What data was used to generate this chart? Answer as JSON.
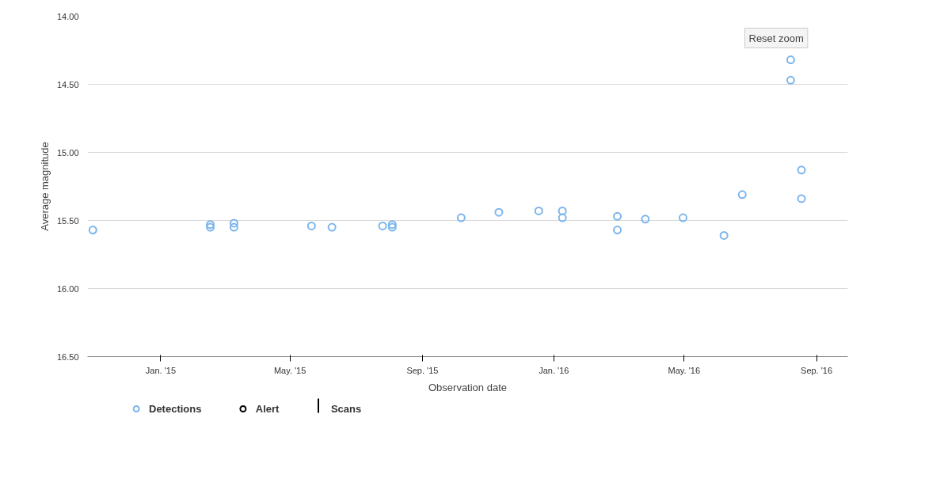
{
  "chart_data": {
    "type": "scatter",
    "xlabel": "Observation date",
    "ylabel": "Average magnitude",
    "xlim": [
      "2014-10-25",
      "2016-09-30"
    ],
    "ylim": [
      16.5,
      14.0
    ],
    "xticks": [
      {
        "value": "2015-01-01",
        "label": "Jan. '15"
      },
      {
        "value": "2015-05-01",
        "label": "May. '15"
      },
      {
        "value": "2015-09-01",
        "label": "Sep. '15"
      },
      {
        "value": "2016-01-01",
        "label": "Jan. '16"
      },
      {
        "value": "2016-05-01",
        "label": "May. '16"
      },
      {
        "value": "2016-09-01",
        "label": "Sep. '16"
      }
    ],
    "yticks": [
      {
        "value": 14.0,
        "label": "14.00"
      },
      {
        "value": 14.5,
        "label": "14.50"
      },
      {
        "value": 15.0,
        "label": "15.00"
      },
      {
        "value": 15.5,
        "label": "15.50"
      },
      {
        "value": 16.0,
        "label": "16.00"
      },
      {
        "value": 16.5,
        "label": "16.50"
      }
    ],
    "grid": "y",
    "legend": "bottom",
    "marker": "circle",
    "annotations": [
      "Reset zoom"
    ],
    "series": [
      {
        "name": "Detections",
        "color": "#7cb5ec",
        "x": [
          "2014-10-30",
          "2015-02-16",
          "2015-02-16",
          "2015-03-10",
          "2015-03-10",
          "2015-05-21",
          "2015-06-09",
          "2015-07-26",
          "2015-08-04",
          "2015-08-04",
          "2015-10-07",
          "2015-11-11",
          "2015-12-18",
          "2016-01-09",
          "2016-01-09",
          "2016-02-29",
          "2016-02-29",
          "2016-03-26",
          "2016-04-30",
          "2016-06-07",
          "2016-06-24",
          "2016-08-08",
          "2016-08-08",
          "2016-08-18",
          "2016-08-18"
        ],
        "values": [
          15.57,
          15.53,
          15.55,
          15.52,
          15.55,
          15.54,
          15.55,
          15.54,
          15.53,
          15.55,
          15.48,
          15.44,
          15.43,
          15.43,
          15.48,
          15.47,
          15.57,
          15.49,
          15.48,
          15.61,
          15.31,
          14.32,
          14.47,
          15.13,
          15.34
        ]
      },
      {
        "name": "Alert",
        "color": "#000000"
      },
      {
        "name": "Scans",
        "type": "bar",
        "color": "#000000"
      }
    ]
  }
}
